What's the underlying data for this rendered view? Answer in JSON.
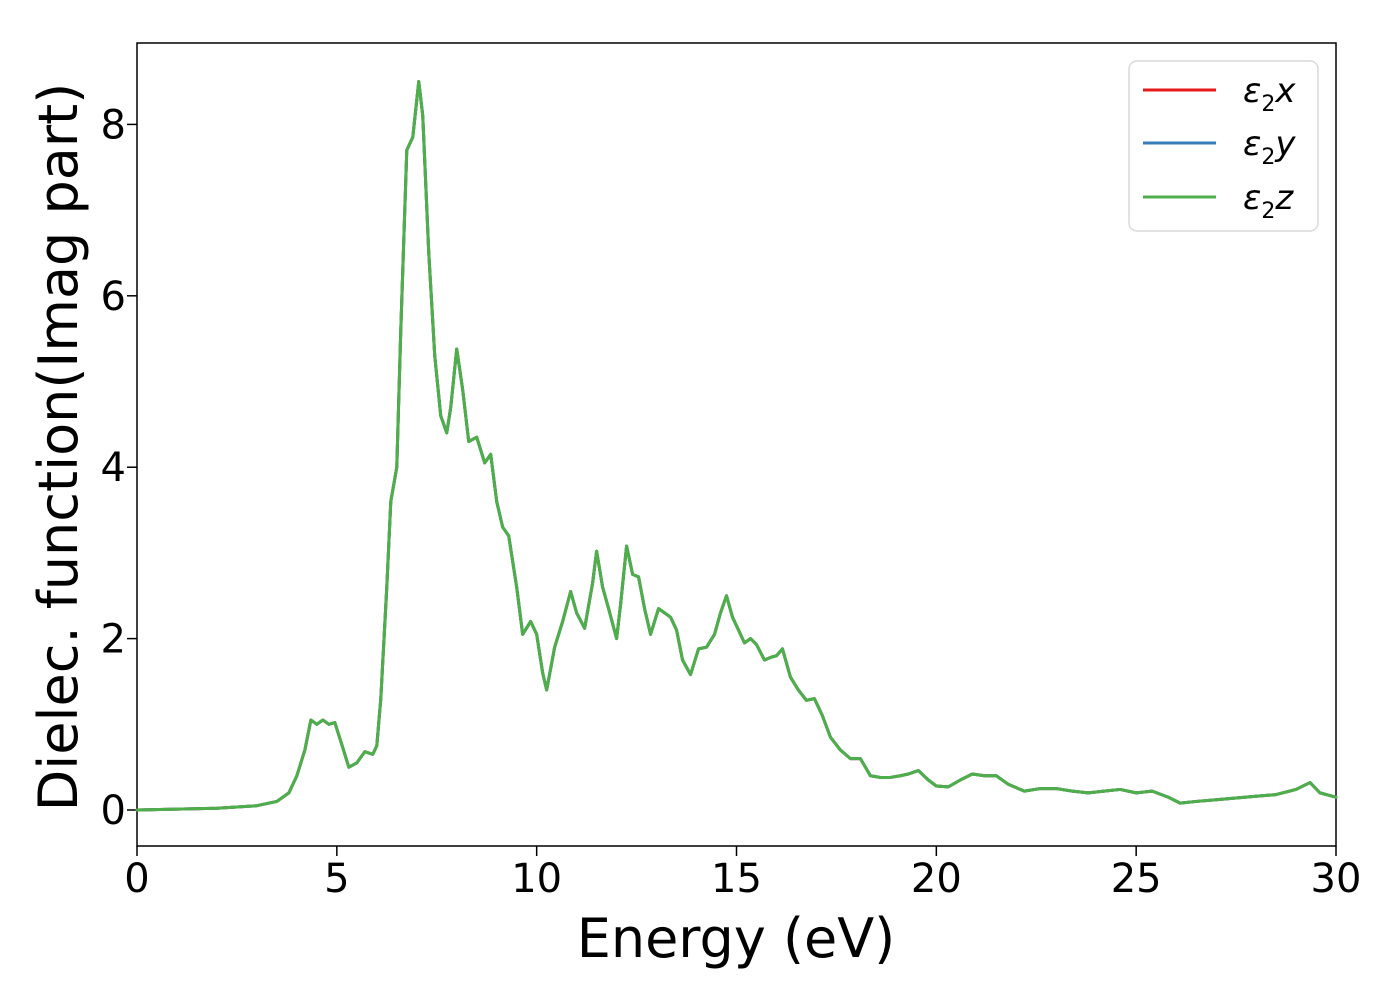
{
  "chart_data": {
    "type": "line",
    "title": "",
    "xlabel": "Energy (eV)",
    "ylabel": "Dielec. function(Imag part)",
    "xlim": [
      0,
      30
    ],
    "ylim": [
      -0.42,
      8.95
    ],
    "xticks": [
      0,
      5,
      10,
      15,
      20,
      25,
      30
    ],
    "yticks": [
      0,
      2,
      4,
      6,
      8
    ],
    "grid": false,
    "legend_position": "top-right",
    "colors": {
      "x": "#e41a1c",
      "y": "#377eb8",
      "z": "#4daf4a"
    },
    "legend": [
      {
        "key": "x",
        "base": "ε",
        "sub": "2",
        "suffix": "x"
      },
      {
        "key": "y",
        "base": "ε",
        "sub": "2",
        "suffix": "y"
      },
      {
        "key": "z",
        "base": "ε",
        "sub": "2",
        "suffix": "z"
      }
    ],
    "series": [
      {
        "name": "ε2x",
        "key": "x"
      },
      {
        "name": "ε2y",
        "key": "y"
      },
      {
        "name": "ε2z",
        "key": "z"
      }
    ],
    "points": [
      [
        0.0,
        0.0
      ],
      [
        1.0,
        0.01
      ],
      [
        2.0,
        0.02
      ],
      [
        3.0,
        0.05
      ],
      [
        3.5,
        0.1
      ],
      [
        3.8,
        0.2
      ],
      [
        4.0,
        0.4
      ],
      [
        4.2,
        0.7
      ],
      [
        4.35,
        1.05
      ],
      [
        4.5,
        1.0
      ],
      [
        4.65,
        1.05
      ],
      [
        4.8,
        1.0
      ],
      [
        4.95,
        1.02
      ],
      [
        5.1,
        0.8
      ],
      [
        5.3,
        0.5
      ],
      [
        5.5,
        0.55
      ],
      [
        5.7,
        0.68
      ],
      [
        5.9,
        0.65
      ],
      [
        6.0,
        0.75
      ],
      [
        6.1,
        1.3
      ],
      [
        6.25,
        2.6
      ],
      [
        6.35,
        3.6
      ],
      [
        6.5,
        4.0
      ],
      [
        6.6,
        5.6
      ],
      [
        6.75,
        7.7
      ],
      [
        6.9,
        7.85
      ],
      [
        7.05,
        8.5
      ],
      [
        7.15,
        8.1
      ],
      [
        7.3,
        6.5
      ],
      [
        7.45,
        5.3
      ],
      [
        7.6,
        4.6
      ],
      [
        7.75,
        4.4
      ],
      [
        7.85,
        4.7
      ],
      [
        8.0,
        5.38
      ],
      [
        8.15,
        4.9
      ],
      [
        8.3,
        4.3
      ],
      [
        8.5,
        4.35
      ],
      [
        8.7,
        4.05
      ],
      [
        8.85,
        4.15
      ],
      [
        9.0,
        3.6
      ],
      [
        9.15,
        3.3
      ],
      [
        9.3,
        3.2
      ],
      [
        9.5,
        2.6
      ],
      [
        9.65,
        2.05
      ],
      [
        9.85,
        2.2
      ],
      [
        10.0,
        2.05
      ],
      [
        10.15,
        1.6
      ],
      [
        10.25,
        1.4
      ],
      [
        10.45,
        1.9
      ],
      [
        10.65,
        2.2
      ],
      [
        10.85,
        2.55
      ],
      [
        11.0,
        2.3
      ],
      [
        11.2,
        2.12
      ],
      [
        11.4,
        2.65
      ],
      [
        11.5,
        3.02
      ],
      [
        11.65,
        2.6
      ],
      [
        11.8,
        2.35
      ],
      [
        12.0,
        2.0
      ],
      [
        12.1,
        2.4
      ],
      [
        12.25,
        3.08
      ],
      [
        12.4,
        2.75
      ],
      [
        12.55,
        2.72
      ],
      [
        12.7,
        2.35
      ],
      [
        12.85,
        2.05
      ],
      [
        13.05,
        2.35
      ],
      [
        13.2,
        2.3
      ],
      [
        13.35,
        2.25
      ],
      [
        13.5,
        2.1
      ],
      [
        13.65,
        1.75
      ],
      [
        13.85,
        1.58
      ],
      [
        14.05,
        1.88
      ],
      [
        14.25,
        1.9
      ],
      [
        14.45,
        2.05
      ],
      [
        14.6,
        2.3
      ],
      [
        14.75,
        2.5
      ],
      [
        14.9,
        2.25
      ],
      [
        15.05,
        2.1
      ],
      [
        15.2,
        1.95
      ],
      [
        15.35,
        2.0
      ],
      [
        15.5,
        1.93
      ],
      [
        15.7,
        1.75
      ],
      [
        15.85,
        1.78
      ],
      [
        16.0,
        1.8
      ],
      [
        16.15,
        1.88
      ],
      [
        16.35,
        1.55
      ],
      [
        16.55,
        1.4
      ],
      [
        16.75,
        1.28
      ],
      [
        16.95,
        1.3
      ],
      [
        17.15,
        1.1
      ],
      [
        17.35,
        0.85
      ],
      [
        17.6,
        0.7
      ],
      [
        17.85,
        0.6
      ],
      [
        18.1,
        0.6
      ],
      [
        18.35,
        0.4
      ],
      [
        18.6,
        0.38
      ],
      [
        18.85,
        0.38
      ],
      [
        19.1,
        0.4
      ],
      [
        19.3,
        0.42
      ],
      [
        19.55,
        0.46
      ],
      [
        19.8,
        0.35
      ],
      [
        20.0,
        0.28
      ],
      [
        20.3,
        0.27
      ],
      [
        20.6,
        0.35
      ],
      [
        20.9,
        0.42
      ],
      [
        21.2,
        0.4
      ],
      [
        21.5,
        0.4
      ],
      [
        21.8,
        0.3
      ],
      [
        22.2,
        0.22
      ],
      [
        22.6,
        0.25
      ],
      [
        23.0,
        0.25
      ],
      [
        23.4,
        0.22
      ],
      [
        23.8,
        0.2
      ],
      [
        24.2,
        0.22
      ],
      [
        24.6,
        0.24
      ],
      [
        25.0,
        0.2
      ],
      [
        25.4,
        0.22
      ],
      [
        25.8,
        0.15
      ],
      [
        26.1,
        0.08
      ],
      [
        26.5,
        0.1
      ],
      [
        27.0,
        0.12
      ],
      [
        27.5,
        0.14
      ],
      [
        28.0,
        0.16
      ],
      [
        28.5,
        0.18
      ],
      [
        29.0,
        0.24
      ],
      [
        29.35,
        0.32
      ],
      [
        29.6,
        0.2
      ],
      [
        30.0,
        0.15
      ]
    ]
  }
}
